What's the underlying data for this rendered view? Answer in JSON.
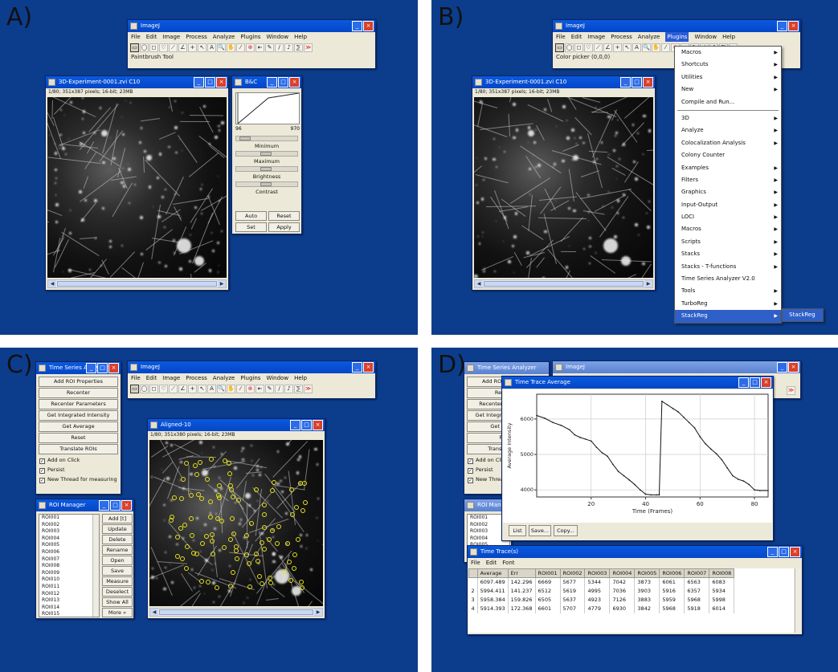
{
  "panels": {
    "a": {
      "label": "A)"
    },
    "b": {
      "label": "B)"
    },
    "c": {
      "label": "C)"
    },
    "d": {
      "label": "D)"
    }
  },
  "imagej": {
    "title": "ImageJ",
    "menu": [
      "File",
      "Edit",
      "Image",
      "Process",
      "Analyze",
      "Plugins",
      "Window",
      "Help"
    ],
    "tools": [
      "▭",
      "◯",
      "◻",
      "♡",
      "⟋",
      "∠",
      "+",
      "↖",
      "A",
      "🔍",
      "✋",
      "⁄",
      "⊕",
      "⇤",
      "✎",
      "/",
      "♪",
      "⅀",
      "≫"
    ],
    "status_a": "Paintbrush Tool",
    "status_b": "Color picker (0,0,0)"
  },
  "image_window": {
    "title": "3D-Experiment-0001.zvi  C10",
    "info": "1/80; 351x387 pixels; 16-bit; 23MB"
  },
  "bc_window": {
    "title": "B&C",
    "min_val": "96",
    "max_val": "970",
    "labels": [
      "Minimum",
      "Maximum",
      "Brightness",
      "Contrast"
    ],
    "buttons": [
      "Auto",
      "Reset",
      "Set",
      "Apply"
    ]
  },
  "plugins_menu": {
    "items": [
      {
        "label": "Macros",
        "sub": true
      },
      {
        "label": "Shortcuts",
        "sub": true
      },
      {
        "label": "Utilities",
        "sub": true
      },
      {
        "label": "New",
        "sub": true
      },
      {
        "label": "Compile and Run...",
        "sub": false,
        "sep_after": true
      },
      {
        "label": "3D",
        "sub": true
      },
      {
        "label": "Analyze",
        "sub": true
      },
      {
        "label": "Colocalization Analysis",
        "sub": true
      },
      {
        "label": "Colony Counter",
        "sub": false
      },
      {
        "label": "Examples",
        "sub": true
      },
      {
        "label": "Filters",
        "sub": true
      },
      {
        "label": "Graphics",
        "sub": true
      },
      {
        "label": "Input-Output",
        "sub": true
      },
      {
        "label": "LOCI",
        "sub": true
      },
      {
        "label": "Macros",
        "sub": true
      },
      {
        "label": "Scripts",
        "sub": true
      },
      {
        "label": "Stacks",
        "sub": true
      },
      {
        "label": "Stacks - T-functions",
        "sub": true
      },
      {
        "label": "Time Series Analyzer V2.0",
        "sub": false
      },
      {
        "label": "Tools",
        "sub": true
      },
      {
        "label": "TurboReg",
        "sub": true
      },
      {
        "label": "StackReg",
        "sub": true,
        "highlight": true
      }
    ],
    "submenu_item": "StackReg"
  },
  "ts_analyzer": {
    "title": "Time Series Analyzer",
    "buttons": [
      "Add ROI Properties",
      "Recenter",
      "Recenter Parameters",
      "Get Integrated Intensity",
      "Get Average",
      "Reset",
      "Translate ROIs"
    ],
    "checks": [
      {
        "label": "Add on Click",
        "checked": true
      },
      {
        "label": "Persist",
        "checked": true
      },
      {
        "label": "New Thread for measuring",
        "checked": true
      }
    ]
  },
  "roi_manager": {
    "title": "ROI Manager",
    "items": [
      "ROI001",
      "ROI002",
      "ROI003",
      "ROI004",
      "ROI005",
      "ROI006",
      "ROI007",
      "ROI008",
      "ROI009",
      "ROI010",
      "ROI011",
      "ROI012",
      "ROI013",
      "ROI014",
      "ROI015"
    ],
    "buttons": [
      "Add [t]",
      "Update",
      "Delete",
      "Rename",
      "Open",
      "Save",
      "Measure",
      "Deselect",
      "Show All",
      "More »"
    ]
  },
  "aligned_window": {
    "title": "Aligned-10",
    "info": "1/80; 351x380 pixels; 16-bit; 23MB"
  },
  "time_trace_avg": {
    "title": "Time Trace Average",
    "buttons": [
      "List",
      "Save...",
      "Copy..."
    ]
  },
  "chart_data": {
    "type": "line",
    "xlabel": "Time (Frames)",
    "ylabel": "Average Intensity",
    "xlim": [
      0,
      85
    ],
    "ylim": [
      3800,
      6700
    ],
    "xticks": [
      20,
      40,
      60,
      80
    ],
    "yticks": [
      4000,
      5000,
      6000
    ],
    "grid": true,
    "series": [
      {
        "x": [
          0,
          3,
          6,
          9,
          12,
          14,
          16,
          18,
          20,
          22,
          24,
          26,
          28,
          30,
          32,
          34,
          36,
          38,
          40,
          42,
          44,
          45
        ],
        "y": [
          6100,
          6020,
          5900,
          5820,
          5700,
          5550,
          5480,
          5430,
          5380,
          5200,
          5050,
          4950,
          4720,
          4520,
          4400,
          4280,
          4150,
          4000,
          3880,
          3860,
          3860,
          3860
        ]
      },
      {
        "x": [
          45,
          46,
          48,
          50,
          52,
          54,
          56,
          58,
          60,
          62,
          64,
          66,
          68,
          70,
          72,
          74,
          76,
          78,
          80,
          82,
          85
        ],
        "y": [
          3860,
          6500,
          6400,
          6300,
          6200,
          6050,
          5900,
          5750,
          5500,
          5300,
          5150,
          5020,
          4850,
          4620,
          4400,
          4300,
          4250,
          4150,
          4000,
          3980,
          3980
        ]
      }
    ]
  },
  "time_trace_table": {
    "title": "Time Trace(s)",
    "menu": [
      "File",
      "Edit",
      "Font"
    ],
    "headers": [
      "",
      "Average",
      "Err",
      "ROI001",
      "ROI002",
      "ROI003",
      "ROI004",
      "ROI005",
      "ROI006",
      "ROI007",
      "ROI008"
    ],
    "rows": [
      [
        "",
        "6097.489",
        "142.296",
        "6669",
        "5677",
        "5344",
        "7042",
        "3873",
        "6061",
        "6563",
        "6083"
      ],
      [
        "2",
        "5994.411",
        "141.237",
        "6512",
        "5619",
        "4995",
        "7036",
        "3903",
        "5916",
        "6357",
        "5934"
      ],
      [
        "3",
        "5958.384",
        "159.826",
        "6505",
        "5637",
        "4923",
        "7126",
        "3883",
        "5959",
        "5968",
        "5998"
      ],
      [
        "4",
        "5914.393",
        "172.368",
        "6601",
        "5707",
        "4779",
        "6930",
        "3842",
        "5968",
        "5918",
        "6014"
      ]
    ]
  },
  "colors": {
    "desktop": "#0c3d8c",
    "titlebar": "#0546c6",
    "roi": "#e8e21a"
  }
}
